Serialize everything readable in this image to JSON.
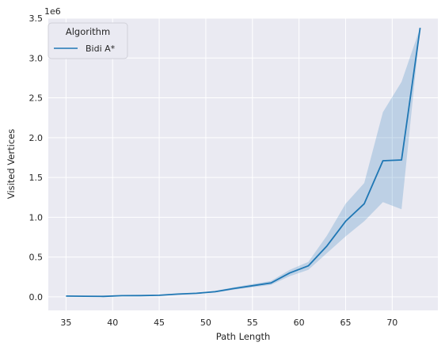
{
  "chart_data": {
    "type": "line",
    "title": "",
    "xlabel": "Path Length",
    "ylabel": "Visited Vertices",
    "y_offset_label": "1e6",
    "xlim": [
      33.1,
      74.9
    ],
    "ylim": [
      -0.17,
      3.5
    ],
    "x_ticks": [
      35,
      40,
      45,
      50,
      55,
      60,
      65,
      70
    ],
    "x_tick_labels": [
      "35",
      "40",
      "45",
      "50",
      "55",
      "60",
      "65",
      "70"
    ],
    "y_ticks": [
      0,
      0.5,
      1.0,
      1.5,
      2.0,
      2.5,
      3.0,
      3.5
    ],
    "y_tick_labels": [
      "0.0",
      "0.5",
      "1.0",
      "1.5",
      "2.0",
      "2.5",
      "3.0",
      "3.5"
    ],
    "grid": true,
    "legend": {
      "title": "Algorithm",
      "placement": "top-left"
    },
    "colors": {
      "line": "#1f77b4",
      "band": "#1f77b4",
      "background": "#eaeaf2",
      "grid": "#ffffff"
    },
    "series": [
      {
        "name": "Bidi A*",
        "x": [
          35,
          37,
          39,
          41,
          43,
          45,
          47,
          49,
          51,
          53,
          55,
          57,
          59,
          61,
          63,
          65,
          67,
          69,
          71,
          73
        ],
        "y": [
          0.01,
          0.008,
          0.006,
          0.015,
          0.016,
          0.02,
          0.035,
          0.045,
          0.065,
          0.105,
          0.14,
          0.175,
          0.3,
          0.39,
          0.64,
          0.95,
          1.17,
          1.71,
          1.72,
          3.38
        ],
        "lower": [
          0.008,
          0.006,
          0.005,
          0.012,
          0.013,
          0.017,
          0.03,
          0.038,
          0.055,
          0.09,
          0.12,
          0.15,
          0.26,
          0.34,
          0.55,
          0.76,
          0.95,
          1.19,
          1.1,
          3.38
        ],
        "upper": [
          0.012,
          0.01,
          0.008,
          0.018,
          0.019,
          0.024,
          0.04,
          0.052,
          0.075,
          0.12,
          0.16,
          0.2,
          0.34,
          0.44,
          0.77,
          1.17,
          1.43,
          2.32,
          2.7,
          3.38
        ]
      }
    ]
  }
}
